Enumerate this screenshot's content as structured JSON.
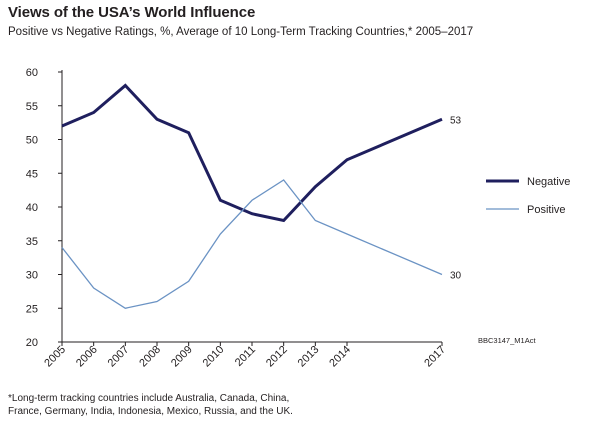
{
  "header": {
    "title": "Views of the USA’s World Influence",
    "subtitle": "Positive vs Negative Ratings, %, Average of 10 Long-Term Tracking Countries,* 2005–2017"
  },
  "footnote": {
    "line1": "*Long-term tracking countries include Australia, Canada, China,",
    "line2": "France, Germany, India, Indonesia, Mexico, Russia, and the UK."
  },
  "source_code": "BBC3147_M1Act",
  "colors": {
    "negative": "#1f1f5e",
    "positive": "#6b93c4",
    "axis": "#231f20"
  },
  "chart_data": {
    "type": "line",
    "title": "Views of the USA’s World Influence",
    "subtitle": "Positive vs Negative Ratings, %, Average of 10 Long-Term Tracking Countries,* 2005–2017",
    "x": [
      2005,
      2006,
      2007,
      2008,
      2009,
      2010,
      2011,
      2012,
      2013,
      2014,
      2017
    ],
    "x_tick_labels": [
      "2005",
      "2006",
      "2007",
      "2008",
      "2009",
      "2010",
      "2011",
      "2012",
      "2013",
      "2014",
      "2017"
    ],
    "y_ticks": [
      20,
      25,
      30,
      35,
      40,
      45,
      50,
      55,
      60
    ],
    "ylim": [
      20,
      60
    ],
    "xlim": [
      2005,
      2017
    ],
    "grid": false,
    "legend_position": "right",
    "series": [
      {
        "name": "Negative",
        "values": [
          52,
          54,
          58,
          53,
          51,
          41,
          39,
          38,
          43,
          47,
          53
        ],
        "end_label": "53"
      },
      {
        "name": "Positive",
        "values": [
          34,
          28,
          25,
          26,
          29,
          36,
          41,
          44,
          38,
          36,
          30
        ],
        "end_label": "30"
      }
    ]
  }
}
